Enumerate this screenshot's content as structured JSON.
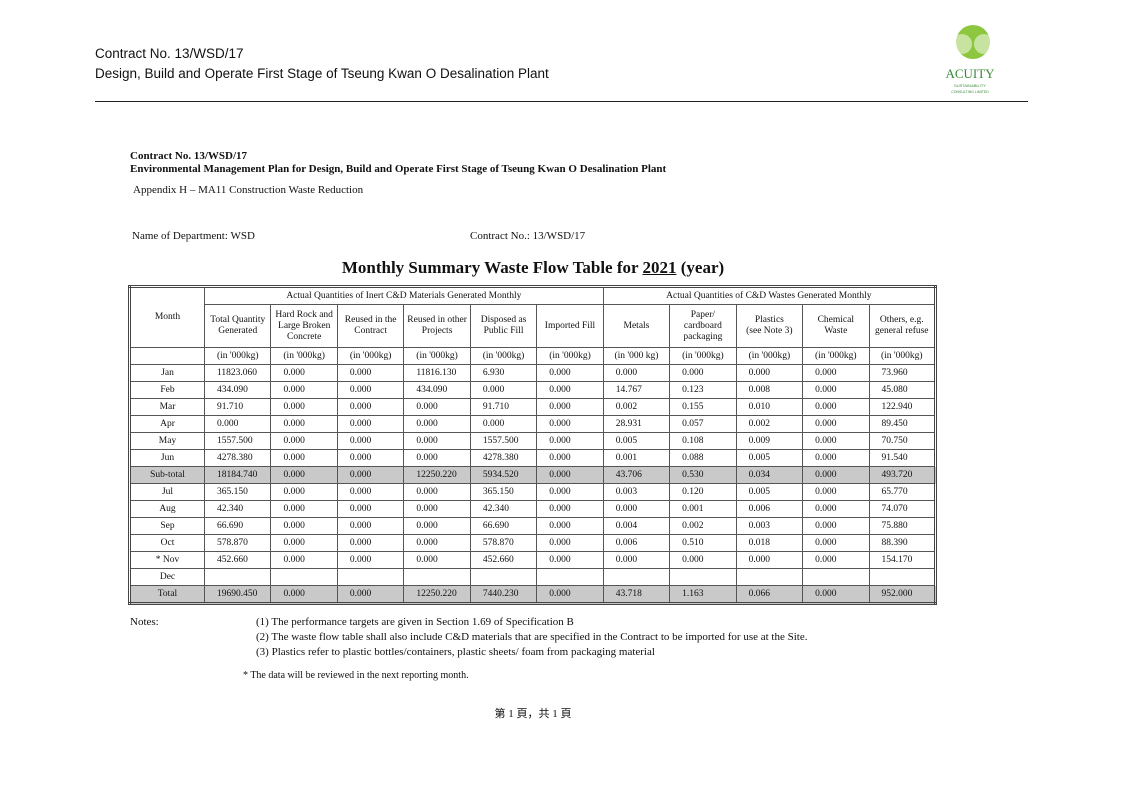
{
  "header": {
    "line1": "Contract No. 13/WSD/17",
    "line2": "Design, Build and Operate First Stage of Tseung Kwan O Desalination Plant",
    "logo_name": "ACUITY",
    "logo_sub1": "SUSTAINABILITY",
    "logo_sub2": "CONSULTING LIMITED"
  },
  "doc": {
    "contract": "Contract No. 13/WSD/17",
    "plan": "Environmental Management Plan for Design, Build and Operate First Stage of Tseung Kwan O Desalination Plant",
    "appendix": "Appendix H – MA11 Construction Waste Reduction",
    "department": "Name of Department: WSD",
    "contract_no": "Contract No.:  13/WSD/17"
  },
  "table": {
    "title_prefix": "Monthly Summary Waste Flow Table for",
    "year": "2021",
    "title_suffix": "(year)",
    "month_header": "Month",
    "group1": "Actual Quantities of Inert C&D Materials Generated Monthly",
    "group2": "Actual Quantities of C&D Wastes Generated Monthly",
    "columns": [
      "Total Quantity Generated",
      "Hard Rock and Large Broken Concrete",
      "Reused in the Contract",
      "Reused in other Projects",
      "Disposed as Public Fill",
      "Imported Fill",
      "Metals",
      "Paper/ cardboard packaging",
      "Plastics\n(see Note 3)",
      "Chemical Waste",
      "Others, e.g. general refuse"
    ],
    "units": [
      "(in '000kg)",
      "(in '000kg)",
      "(in '000kg)",
      "(in '000kg)",
      "(in '000kg)",
      "(in '000kg)",
      "(in '000 kg)",
      "(in '000kg)",
      "(in '000kg)",
      "(in '000kg)",
      "(in '000kg)"
    ],
    "rows": [
      [
        "Jan",
        "11823.060",
        "0.000",
        "0.000",
        "11816.130",
        "6.930",
        "0.000",
        "0.000",
        "0.000",
        "0.000",
        "0.000",
        "73.960"
      ],
      [
        "Feb",
        "434.090",
        "0.000",
        "0.000",
        "434.090",
        "0.000",
        "0.000",
        "14.767",
        "0.123",
        "0.008",
        "0.000",
        "45.080"
      ],
      [
        "Mar",
        "91.710",
        "0.000",
        "0.000",
        "0.000",
        "91.710",
        "0.000",
        "0.002",
        "0.155",
        "0.010",
        "0.000",
        "122.940"
      ],
      [
        "Apr",
        "0.000",
        "0.000",
        "0.000",
        "0.000",
        "0.000",
        "0.000",
        "28.931",
        "0.057",
        "0.002",
        "0.000",
        "89.450"
      ],
      [
        "May",
        "1557.500",
        "0.000",
        "0.000",
        "0.000",
        "1557.500",
        "0.000",
        "0.005",
        "0.108",
        "0.009",
        "0.000",
        "70.750"
      ],
      [
        "Jun",
        "4278.380",
        "0.000",
        "0.000",
        "0.000",
        "4278.380",
        "0.000",
        "0.001",
        "0.088",
        "0.005",
        "0.000",
        "91.540"
      ],
      [
        "Sub-total",
        "18184.740",
        "0.000",
        "0.000",
        "12250.220",
        "5934.520",
        "0.000",
        "43.706",
        "0.530",
        "0.034",
        "0.000",
        "493.720"
      ],
      [
        "Jul",
        "365.150",
        "0.000",
        "0.000",
        "0.000",
        "365.150",
        "0.000",
        "0.003",
        "0.120",
        "0.005",
        "0.000",
        "65.770"
      ],
      [
        "Aug",
        "42.340",
        "0.000",
        "0.000",
        "0.000",
        "42.340",
        "0.000",
        "0.000",
        "0.001",
        "0.006",
        "0.000",
        "74.070"
      ],
      [
        "Sep",
        "66.690",
        "0.000",
        "0.000",
        "0.000",
        "66.690",
        "0.000",
        "0.004",
        "0.002",
        "0.003",
        "0.000",
        "75.880"
      ],
      [
        "Oct",
        "578.870",
        "0.000",
        "0.000",
        "0.000",
        "578.870",
        "0.000",
        "0.006",
        "0.510",
        "0.018",
        "0.000",
        "88.390"
      ],
      [
        "* Nov",
        "452.660",
        "0.000",
        "0.000",
        "0.000",
        "452.660",
        "0.000",
        "0.000",
        "0.000",
        "0.000",
        "0.000",
        "154.170"
      ],
      [
        "Dec"
      ],
      [
        "Total",
        "19690.450",
        "0.000",
        "0.000",
        "12250.220",
        "7440.230",
        "0.000",
        "43.718",
        "1.163",
        "0.066",
        "0.000",
        "952.000"
      ]
    ]
  },
  "notes": {
    "label": "Notes:",
    "items": [
      "(1) The performance targets are given in Section 1.69 of Specification B",
      "(2) The waste flow table shall also include C&D materials that are specified in the Contract to be imported for use at the Site.",
      "(3) Plastics refer to plastic bottles/containers, plastic sheets/ foam from packaging material"
    ],
    "star": "* The data will be reviewed in the next reporting month."
  },
  "footer": "第 1 頁，共 1 頁"
}
